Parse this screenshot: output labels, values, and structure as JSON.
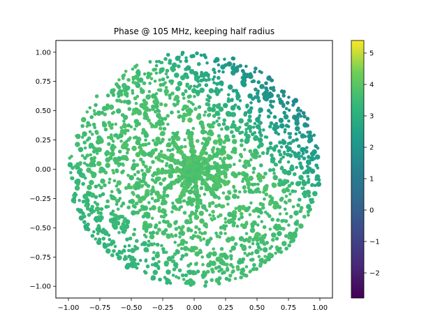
{
  "chart_data": {
    "type": "scatter",
    "title": "Phase @ 105 MHz, keeping half radius",
    "xlabel": "",
    "ylabel": "",
    "xlim": [
      -1.1,
      1.1
    ],
    "ylim": [
      -1.1,
      1.1
    ],
    "xticks": [
      -1.0,
      -0.75,
      -0.5,
      -0.25,
      0.0,
      0.25,
      0.5,
      0.75,
      1.0
    ],
    "yticks": [
      -1.0,
      -0.75,
      -0.5,
      -0.25,
      0.0,
      0.25,
      0.5,
      0.75,
      1.0
    ],
    "xtick_labels": [
      "−1.00",
      "−0.75",
      "−0.50",
      "−0.25",
      "0.00",
      "0.25",
      "0.50",
      "0.75",
      "1.00"
    ],
    "ytick_labels": [
      "−1.00",
      "−0.75",
      "−0.50",
      "−0.25",
      "0.00",
      "0.25",
      "0.50",
      "0.75",
      "1.00"
    ],
    "grid": false,
    "colormap": "viridis",
    "colorbar": {
      "min": -2.8,
      "max": 5.4,
      "ticks": [
        -2,
        -1,
        0,
        1,
        2,
        3,
        4,
        5
      ],
      "tick_labels": [
        "−2",
        "−1",
        "0",
        "1",
        "2",
        "3",
        "4",
        "5"
      ]
    },
    "points_summary": {
      "shape": "disc of radius 1 centered at (0,0)",
      "approx_count": 2000,
      "phase_center": 3.8,
      "phase_edge_lower_left": 3.3,
      "phase_edge_upper_right": 1.8,
      "dense_star_at_origin": true
    }
  }
}
